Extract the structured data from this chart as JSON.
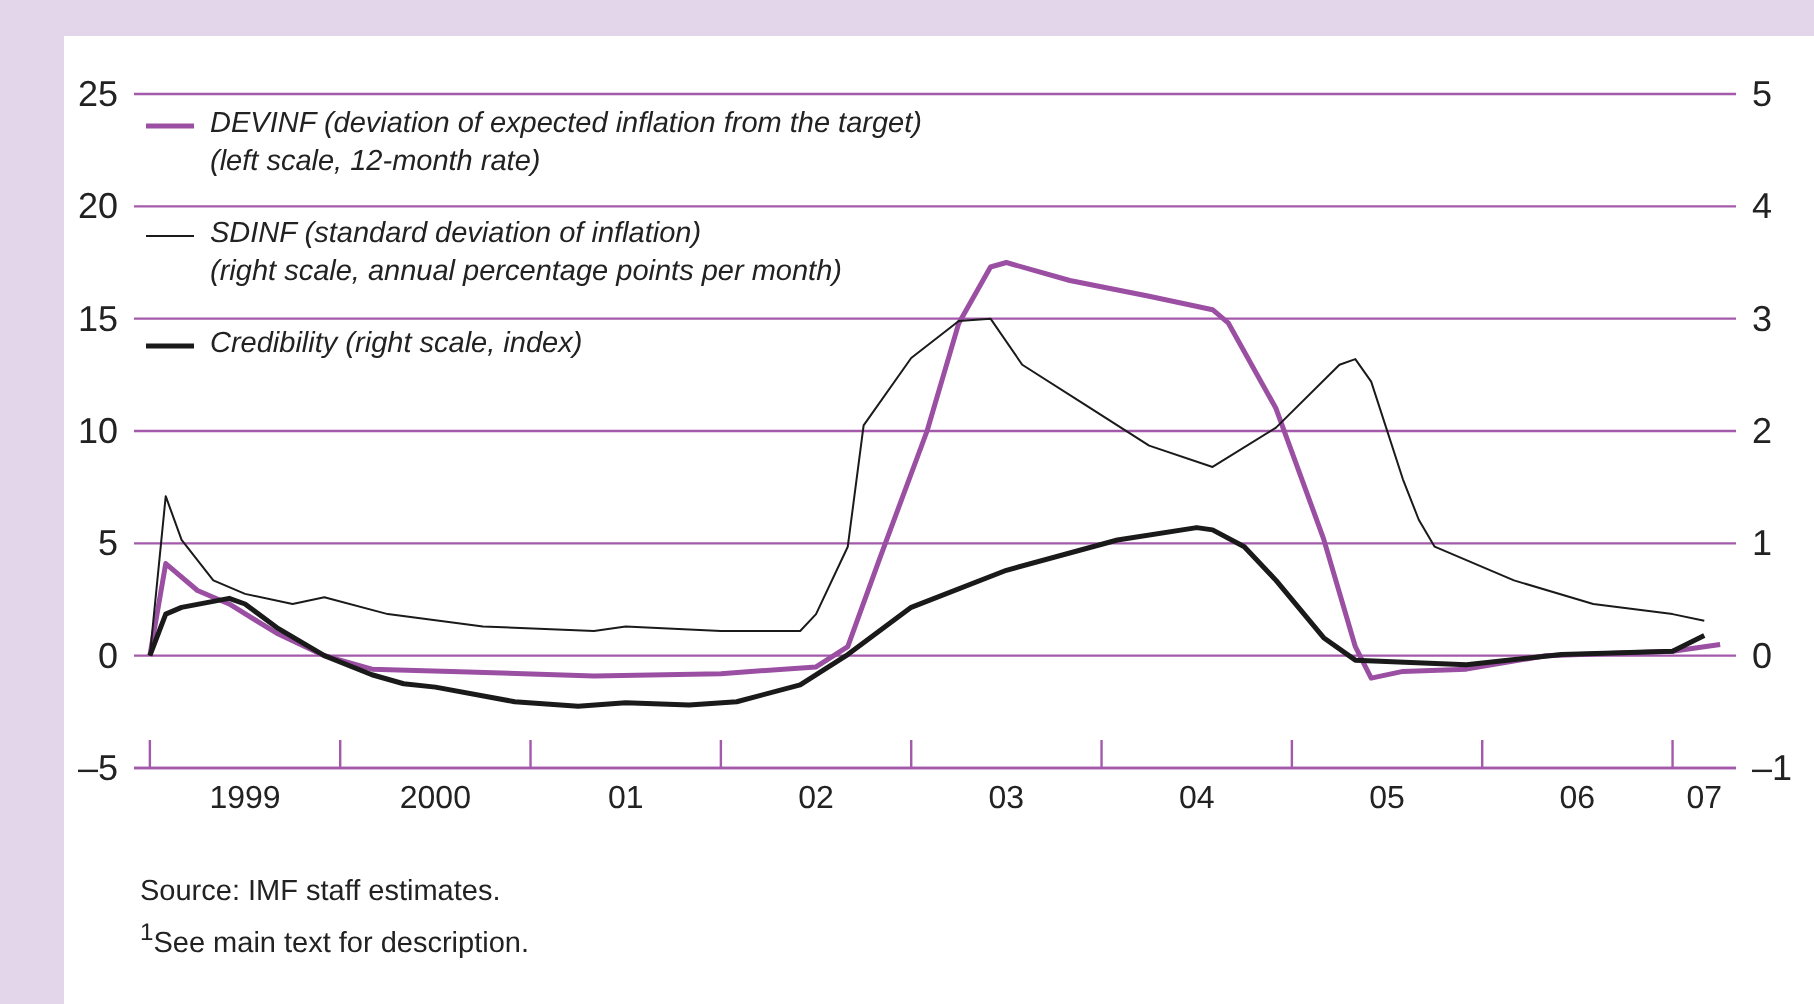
{
  "chart_data": {
    "type": "line",
    "xlim": [
      "1998-12",
      "2007-05"
    ],
    "xticks": [
      {
        "value": "1999-01",
        "label": null
      },
      {
        "value": "1999-07",
        "label": "1999"
      },
      {
        "value": "2000-01",
        "label": null
      },
      {
        "value": "2000-07",
        "label": "2000"
      },
      {
        "value": "2001-01",
        "label": null
      },
      {
        "value": "2001-07",
        "label": "01"
      },
      {
        "value": "2002-01",
        "label": null
      },
      {
        "value": "2002-07",
        "label": "02"
      },
      {
        "value": "2003-01",
        "label": null
      },
      {
        "value": "2003-07",
        "label": "03"
      },
      {
        "value": "2004-01",
        "label": null
      },
      {
        "value": "2004-07",
        "label": "04"
      },
      {
        "value": "2005-01",
        "label": null
      },
      {
        "value": "2005-07",
        "label": "05"
      },
      {
        "value": "2006-01",
        "label": null
      },
      {
        "value": "2006-07",
        "label": "06"
      },
      {
        "value": "2007-01",
        "label": null
      },
      {
        "value": "2007-03",
        "label": "07"
      }
    ],
    "ylim": [
      -5,
      25
    ],
    "yticks": [
      {
        "value": -5,
        "label": "–5"
      },
      0,
      5,
      10,
      15,
      20,
      25
    ],
    "y2lim": [
      -1,
      5
    ],
    "y2ticks": [
      {
        "value": -1,
        "label": "–1"
      },
      0,
      1,
      2,
      3,
      4,
      5
    ],
    "grid": "y",
    "legend": "top left",
    "series": [
      {
        "name": "DEVINF (deviation of expected inflation from the target)\n(left scale, 12-month rate)",
        "color": "#9b4fa3",
        "x": [
          "1999-01",
          "1999-02",
          "1999-04",
          "1999-06",
          "1999-09",
          "1999-12",
          "2000-03",
          "2000-08",
          "2001-05",
          "2002-01",
          "2002-07",
          "2002-09",
          "2002-11",
          "2003-02",
          "2003-04",
          "2003-06",
          "2003-07",
          "2003-11",
          "2004-04",
          "2004-08",
          "2004-09",
          "2004-12",
          "2005-03",
          "2005-05",
          "2005-06",
          "2005-08",
          "2005-12",
          "2006-05",
          "2007-01",
          "2007-04"
        ],
        "values": [
          0,
          4.1,
          2.9,
          2.3,
          1.0,
          0,
          -0.6,
          -0.7,
          -0.9,
          -0.8,
          -0.5,
          0.4,
          4.3,
          10,
          14.8,
          17.3,
          17.5,
          16.7,
          16,
          15.4,
          14.8,
          11,
          5.2,
          0.4,
          -1,
          -0.7,
          -0.6,
          0,
          0.2,
          0.5
        ]
      },
      {
        "name": "SDINF (standard deviation of inflation)\n(right scale, annual percentage points per month)",
        "color": "#1a1a1a",
        "axis": "y2",
        "x": [
          "1999-01",
          "1999-02",
          "1999-03",
          "1999-05",
          "1999-07",
          "1999-10",
          "1999-12",
          "2000-04",
          "2000-10",
          "2001-05",
          "2001-07",
          "2002-01",
          "2002-06",
          "2002-07",
          "2002-09",
          "2002-10",
          "2003-01",
          "2003-04",
          "2003-06",
          "2003-08",
          "2003-12",
          "2004-04",
          "2004-08",
          "2004-12",
          "2005-04",
          "2005-05",
          "2005-06",
          "2005-08",
          "2005-09",
          "2005-10",
          "2006-03",
          "2006-08",
          "2007-01",
          "2007-03"
        ],
        "values": [
          0,
          1.42,
          1.03,
          0.67,
          0.55,
          0.46,
          0.52,
          0.37,
          0.26,
          0.22,
          0.26,
          0.22,
          0.22,
          0.37,
          0.97,
          2.05,
          2.65,
          2.98,
          3.0,
          2.59,
          2.23,
          1.87,
          1.68,
          2.03,
          2.59,
          2.64,
          2.44,
          1.57,
          1.21,
          0.97,
          0.67,
          0.46,
          0.37,
          0.31
        ]
      },
      {
        "name": "Credibility (right scale, index)",
        "color": "#1a1a1a",
        "axis": "y2",
        "x": [
          "1999-01",
          "1999-02",
          "1999-03",
          "1999-06",
          "1999-07",
          "1999-09",
          "1999-12",
          "2000-03",
          "2000-05",
          "2000-07",
          "2000-12",
          "2001-04",
          "2001-07",
          "2001-11",
          "2002-02",
          "2002-06",
          "2002-09",
          "2003-01",
          "2003-07",
          "2004-02",
          "2004-07",
          "2004-08",
          "2004-10",
          "2004-12",
          "2005-03",
          "2005-05",
          "2005-12",
          "2006-06",
          "2007-01",
          "2007-03"
        ],
        "values": [
          0,
          0.37,
          0.43,
          0.51,
          0.46,
          0.25,
          0,
          -0.17,
          -0.25,
          -0.28,
          -0.41,
          -0.45,
          -0.42,
          -0.44,
          -0.41,
          -0.26,
          0.01,
          0.43,
          0.76,
          1.03,
          1.14,
          1.12,
          0.97,
          0.67,
          0.16,
          -0.04,
          -0.08,
          0.01,
          0.04,
          0.18
        ]
      }
    ],
    "annotations": [
      "Source:  IMF staff estimates.",
      "$^{1}$See main text for description."
    ]
  }
}
